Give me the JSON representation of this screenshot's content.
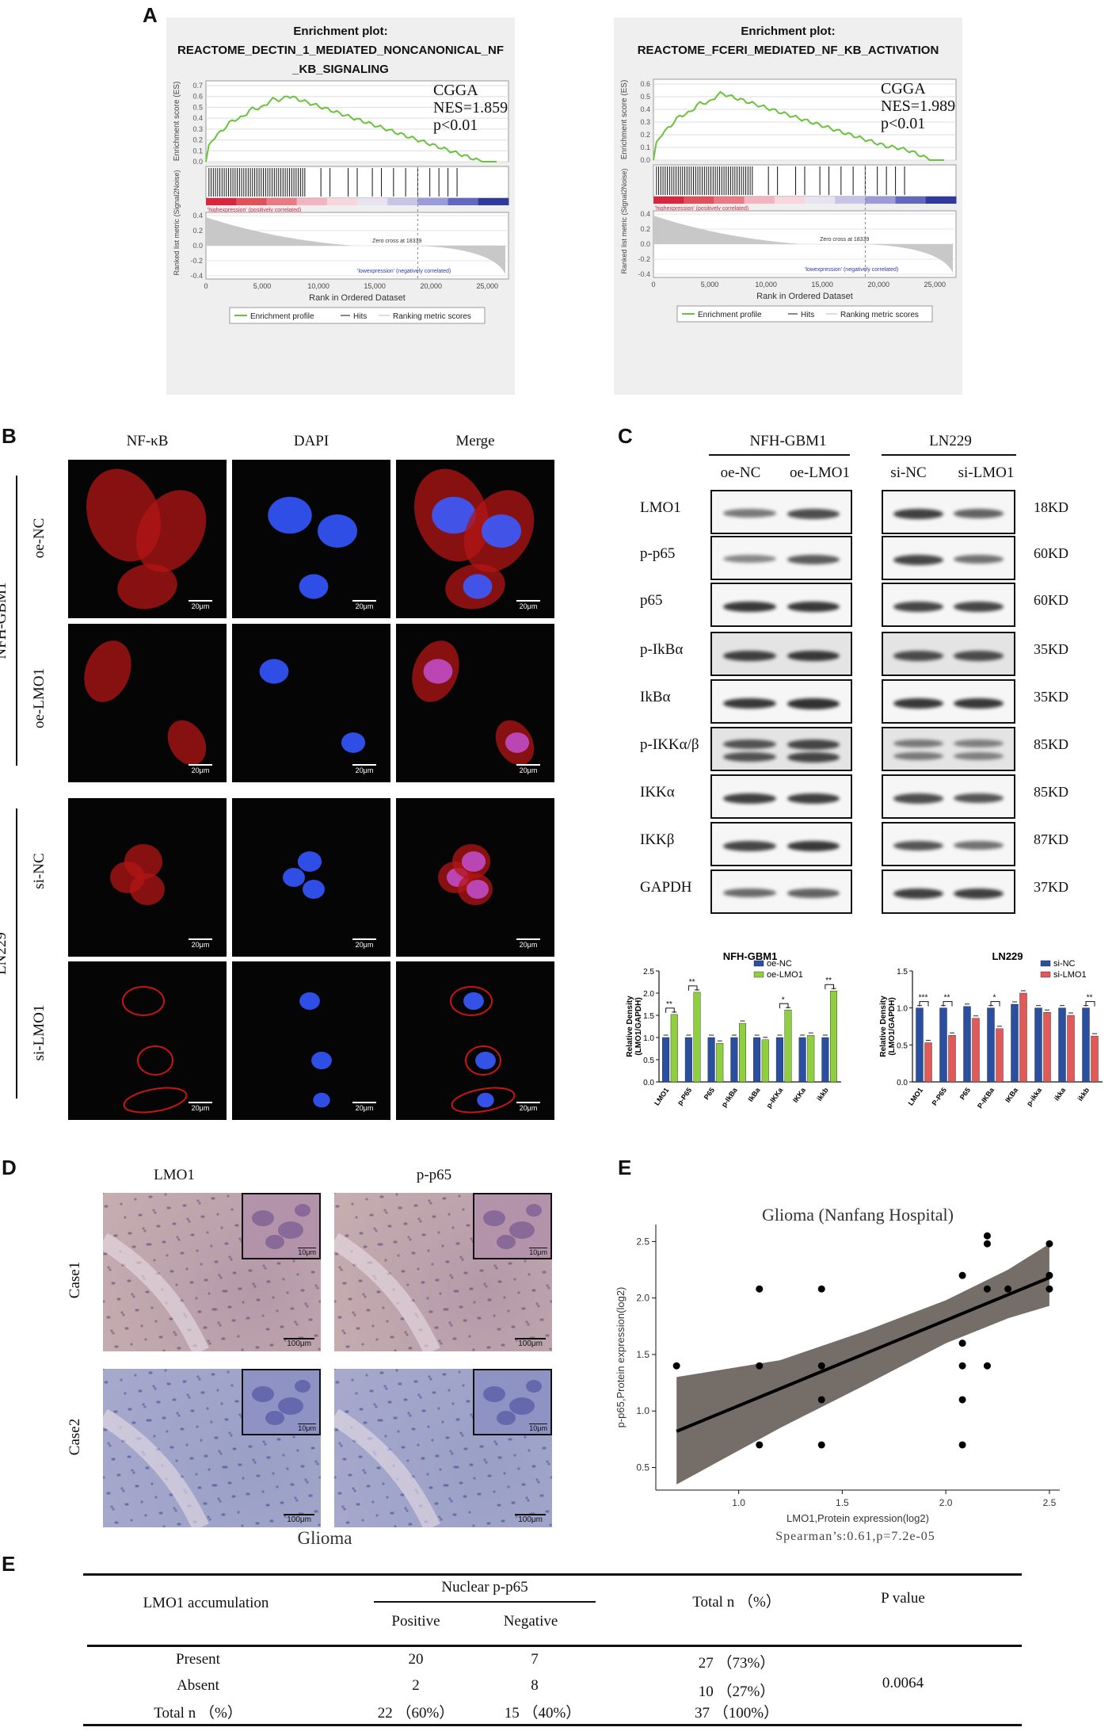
{
  "panelA": {
    "letter": "A",
    "plots": [
      {
        "title_line1": "Enrichment plot:",
        "title_line2": "REACTOME_DECTIN_1_MEDIATED_NONCANONICAL_NF",
        "title_line3": "_KB_SIGNALING",
        "dataset": "CGGA",
        "nes": "NES=1.859",
        "pval": "p<0.01",
        "es_ylabel": "Enrichment score (ES)",
        "es_ticks": [
          "0.7",
          "0.6",
          "0.5",
          "0.4",
          "0.3",
          "0.2",
          "0.1",
          "0.0"
        ],
        "rank_ylabel": "Ranked list metric (Signal2Noise)",
        "rank_ticks": [
          "0.4",
          "0.2",
          "0.0",
          "-0.2",
          "-0.4"
        ],
        "high_label": "'highexpression' (positively correlated)",
        "low_label": "'lowexpression' (negatively correlated)",
        "zero_cross": "Zero cross at 18339",
        "xlabel": "Rank in Ordered Dataset",
        "xticks": [
          "0",
          "5,000",
          "10,000",
          "15,000",
          "20,000",
          "25,000"
        ],
        "legend": [
          "Enrichment profile",
          "Hits",
          "Ranking metric scores"
        ]
      },
      {
        "title_line1": "Enrichment plot:",
        "title_line2": "REACTOME_FCERI_MEDIATED_NF_KB_ACTIVATION",
        "title_line3": "",
        "dataset": "CGGA",
        "nes": "NES=1.989",
        "pval": "p<0.01",
        "es_ylabel": "Enrichment score (ES)",
        "es_ticks": [
          "0.6",
          "0.5",
          "0.4",
          "0.3",
          "0.2",
          "0.1",
          "0.0"
        ],
        "rank_ylabel": "Ranked list metric (Signal2Noise)",
        "rank_ticks": [
          "0.4",
          "0.2",
          "0.0",
          "-0.2",
          "-0.4"
        ],
        "high_label": "'highexpression' (positively correlated)",
        "low_label": "'lowexpression' (negatively correlated)",
        "zero_cross": "Zero cross at 18339",
        "xlabel": "Rank in Ordered Dataset",
        "xticks": [
          "0",
          "5,000",
          "10,000",
          "15,000",
          "20,000",
          "25,000"
        ],
        "legend": [
          "Enrichment profile",
          "Hits",
          "Ranking metric scores"
        ]
      }
    ]
  },
  "panelB": {
    "letter": "B",
    "columns": [
      "NF-κB",
      "DAPI",
      "Merge"
    ],
    "groups": [
      "NFH-GBM1",
      "LN229"
    ],
    "rows": [
      "oe-NC",
      "oe-LMO1",
      "si-NC",
      "si-LMO1"
    ],
    "scale": "20μm"
  },
  "panelC": {
    "letter": "C",
    "groups": [
      "NFH-GBM1",
      "LN229"
    ],
    "lanes": [
      "oe-NC",
      "oe-LMO1",
      "si-NC",
      "si-LMO1"
    ],
    "proteins": [
      "LMO1",
      "p-p65",
      "p65",
      "p-IkBα",
      "IkBα",
      "p-IKKα/β",
      "IKKα",
      "IKKβ",
      "GAPDH"
    ],
    "sizes": [
      "18KD",
      "60KD",
      "60KD",
      "35KD",
      "35KD",
      "85KD",
      "85KD",
      "87KD",
      "37KD"
    ]
  },
  "chart_data": [
    {
      "type": "bar",
      "title": "NFH-GBM1",
      "ylabel": "Relative Density (LMO1/GAPDH)",
      "ylim": [
        0,
        2.5
      ],
      "yticks": [
        "0.0",
        "0.5",
        "1.0",
        "1.5",
        "2.0",
        "2.5"
      ],
      "categories": [
        "LMO1",
        "p-P65",
        "P65",
        "p-IkBa",
        "IkBa",
        "p-IKKa",
        "IKKa",
        "ikkb"
      ],
      "series": [
        {
          "name": "oe-NC",
          "color": "#2a4fa0",
          "values": [
            1.0,
            1.0,
            1.0,
            1.0,
            1.0,
            1.0,
            1.0,
            1.0
          ]
        },
        {
          "name": "oe-LMO1",
          "color": "#8fce3f",
          "values": [
            1.52,
            2.02,
            0.87,
            1.32,
            0.95,
            1.62,
            1.05,
            2.05
          ]
        }
      ],
      "significance": [
        "**",
        "**",
        "",
        "",
        "",
        "*",
        "",
        "**"
      ]
    },
    {
      "type": "bar",
      "title": "LN229",
      "ylabel": "Relative Density (LMO1/GAPDH)",
      "ylim": [
        0,
        1.5
      ],
      "yticks": [
        "0.0",
        "0.5",
        "1.0",
        "1.5"
      ],
      "categories": [
        "LMO1",
        "P-P65",
        "P65",
        "P-IKBa",
        "IKBa",
        "p-ikka",
        "ikka",
        "ikkb"
      ],
      "series": [
        {
          "name": "si-NC",
          "color": "#2a4fa0",
          "values": [
            1.0,
            1.0,
            1.02,
            1.0,
            1.05,
            1.0,
            1.0,
            1.0
          ]
        },
        {
          "name": "si-LMO1",
          "color": "#e05a5a",
          "values": [
            0.53,
            0.63,
            0.86,
            0.72,
            1.2,
            0.94,
            0.9,
            0.62
          ]
        }
      ],
      "significance": [
        "***",
        "**",
        "",
        "*",
        "",
        "",
        "",
        "**"
      ]
    },
    {
      "type": "scatter",
      "title": "Glioma (Nanfang Hospital)",
      "xlabel": "LMO1,Protein expression(log2)",
      "ylabel": "p-p65,Protein expression(log2)",
      "xlim": [
        0.6,
        2.55
      ],
      "ylim": [
        0.3,
        2.65
      ],
      "xticks": [
        "1.0",
        "1.5",
        "2.0",
        "2.5"
      ],
      "yticks": [
        "0.5",
        "1.0",
        "1.5",
        "2.0",
        "2.5"
      ],
      "points": [
        [
          0.7,
          1.4
        ],
        [
          1.1,
          2.08
        ],
        [
          1.1,
          1.4
        ],
        [
          1.1,
          0.7
        ],
        [
          1.4,
          2.08
        ],
        [
          1.4,
          1.4
        ],
        [
          1.4,
          1.1
        ],
        [
          1.4,
          0.7
        ],
        [
          2.08,
          2.2
        ],
        [
          2.08,
          1.6
        ],
        [
          2.08,
          1.4
        ],
        [
          2.08,
          1.1
        ],
        [
          2.08,
          0.7
        ],
        [
          2.2,
          2.55
        ],
        [
          2.2,
          2.48
        ],
        [
          2.2,
          2.08
        ],
        [
          2.2,
          1.4
        ],
        [
          2.3,
          2.08
        ],
        [
          2.5,
          2.48
        ],
        [
          2.5,
          2.2
        ],
        [
          2.5,
          2.08
        ]
      ],
      "fit": {
        "x": [
          0.7,
          2.5
        ],
        "y": [
          0.82,
          2.18
        ]
      },
      "band_upper": [
        [
          0.7,
          1.3
        ],
        [
          1.2,
          1.45
        ],
        [
          1.6,
          1.7
        ],
        [
          2.0,
          1.98
        ],
        [
          2.3,
          2.25
        ],
        [
          2.5,
          2.48
        ]
      ],
      "band_lower": [
        [
          0.7,
          0.35
        ],
        [
          1.2,
          0.85
        ],
        [
          1.6,
          1.22
        ],
        [
          2.0,
          1.6
        ],
        [
          2.3,
          1.82
        ],
        [
          2.5,
          1.93
        ]
      ],
      "annotation": "Spearman’s:0.61,p=7.2e-05"
    }
  ],
  "panelD": {
    "letter": "D",
    "columns": [
      "LMO1",
      "p-p65"
    ],
    "rows": [
      "Case1",
      "Case2"
    ],
    "caption": "Glioma",
    "scale_big": "100μm",
    "scale_small": "10μm"
  },
  "panelE": {
    "letter": "E",
    "table_letter": "E"
  },
  "table": {
    "headers": {
      "col1": "LMO1 accumulation",
      "group": "Nuclear p-p65",
      "positive": "Positive",
      "negative": "Negative",
      "total": "Total n （%）",
      "pvalue": "P value"
    },
    "rows": [
      {
        "label": "Present",
        "pos": "20",
        "neg": "7",
        "total": "27 （73%）"
      },
      {
        "label": "Absent",
        "pos": "2",
        "neg": "8",
        "total": "10 （27%）"
      },
      {
        "label": "Total n （%）",
        "pos": "22 （60%）",
        "neg": "15 （40%）",
        "total": "37 （100%）"
      }
    ],
    "pval": "0.0064"
  }
}
